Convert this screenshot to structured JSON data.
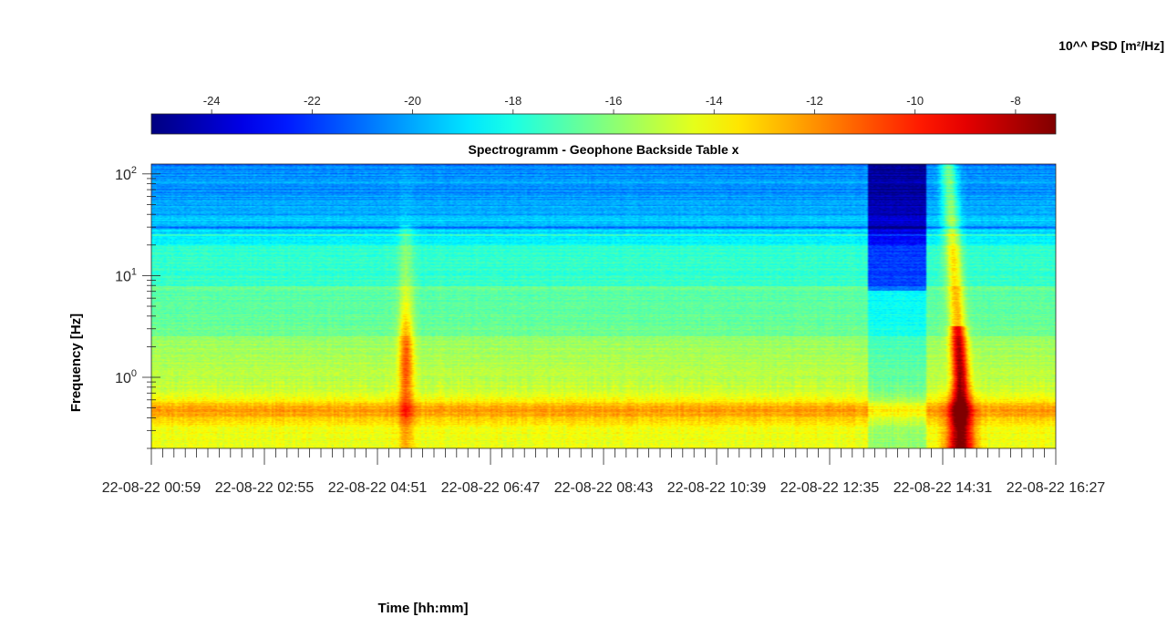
{
  "chart_data": {
    "type": "heatmap",
    "title": "Spectrogramm - Geophone Backside Table x",
    "xlabel": "Time [hh:mm]",
    "ylabel": "Frequency [Hz]",
    "colorbar": {
      "label": "10^^ PSD [m²/Hz]",
      "range": [
        -25.2,
        -7.2
      ],
      "ticks": [
        -24,
        -22,
        -20,
        -18,
        -16,
        -14,
        -12,
        -10,
        -8
      ],
      "tick_labels": [
        "-24",
        "-22",
        "-20",
        "-18",
        "-16",
        "-14",
        "-12",
        "-10",
        "-8"
      ],
      "colormap": "jet",
      "placement": "top"
    },
    "x_tick_labels": [
      "22-08-22 00:59",
      "22-08-22 02:55",
      "22-08-22 04:51",
      "22-08-22 06:47",
      "22-08-22 08:43",
      "22-08-22 10:39",
      "22-08-22 12:35",
      "22-08-22 14:31",
      "22-08-22 16:27"
    ],
    "y_scale": "log",
    "y_range_hz": [
      0.2,
      125
    ],
    "y_ticks": [
      1,
      10,
      100
    ],
    "y_tick_labels": [
      {
        "base": "10",
        "exp": "0"
      },
      {
        "base": "10",
        "exp": "1"
      },
      {
        "base": "10",
        "exp": "2"
      }
    ],
    "features": [
      {
        "kind": "broadband background",
        "frequency_hz": [
          0.2,
          125
        ],
        "psd_log10": [
          -19,
          -14
        ]
      },
      {
        "kind": "persistent band",
        "frequency_hz": [
          0.3,
          0.6
        ],
        "psd_log10": -12.5
      },
      {
        "kind": "line",
        "frequency_hz": 25,
        "psd_log10": -15
      },
      {
        "kind": "line",
        "frequency_hz": 30,
        "psd_log10": -20
      },
      {
        "kind": "short event",
        "time": "~05:20",
        "frequency_hz": [
          0.2,
          30
        ],
        "psd_log10": -12
      },
      {
        "kind": "low-noise interval",
        "time": [
          "~13:15",
          "~14:15"
        ],
        "psd_log10": [
          -23,
          -17
        ]
      },
      {
        "kind": "strong transient",
        "time": "~14:50",
        "frequency_hz": [
          0.2,
          125
        ],
        "psd_log10": -7.5
      }
    ]
  }
}
